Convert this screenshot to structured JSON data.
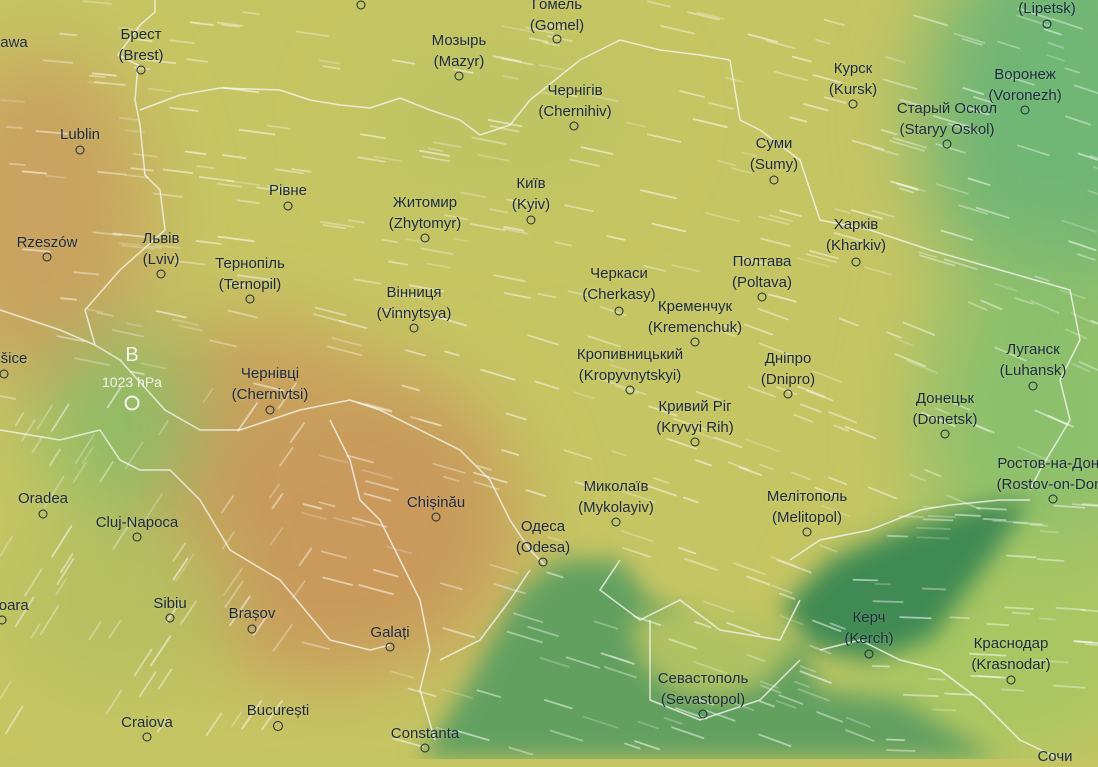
{
  "map": {
    "layer": "wind",
    "colors": {
      "land_warm": "#c99a5c",
      "land_mid": "#c4c463",
      "land_cool": "#7dbb6a",
      "sea": "#5e9e5c",
      "azov": "#3f8a52",
      "labels": "#1d2a3c",
      "borders": "#f2f2e8"
    },
    "pressure_center": {
      "letter": "B",
      "value": "1023 hPa"
    },
    "cities": [
      {
        "name": "awa",
        "alt": ""
      },
      {
        "name": "Брест",
        "alt": "(Brest)"
      },
      {
        "name": "Мозырь",
        "alt": "(Mazyr)"
      },
      {
        "name": "Гомель",
        "alt": "(Gomel)"
      },
      {
        "name": "",
        "alt": "(Lipetsk)"
      },
      {
        "name": "Чернігів",
        "alt": "(Chernihiv)"
      },
      {
        "name": "Курск",
        "alt": "(Kursk)"
      },
      {
        "name": "Воронеж",
        "alt": "(Voronezh)"
      },
      {
        "name": "Старый Оскол",
        "alt": "(Staryy Oskol)"
      },
      {
        "name": "Lublin",
        "alt": ""
      },
      {
        "name": "Суми",
        "alt": "(Sumy)"
      },
      {
        "name": "Рівне",
        "alt": ""
      },
      {
        "name": "Київ",
        "alt": "(Kyiv)"
      },
      {
        "name": "Житомир",
        "alt": "(Zhytomyr)"
      },
      {
        "name": "Rzeszów",
        "alt": ""
      },
      {
        "name": "Львів",
        "alt": "(Lviv)"
      },
      {
        "name": "Харків",
        "alt": "(Kharkiv)"
      },
      {
        "name": "Тернопіль",
        "alt": "(Ternopil)"
      },
      {
        "name": "Полтава",
        "alt": "(Poltava)"
      },
      {
        "name": "Черкаси",
        "alt": "(Cherkasy)"
      },
      {
        "name": "Вінниця",
        "alt": "(Vinnytsya)"
      },
      {
        "name": "Кременчук",
        "alt": "(Kremenchuk)"
      },
      {
        "name": "Кропивницький",
        "alt": "(Kropyvnytskyi)"
      },
      {
        "name": "Дніпро",
        "alt": "(Dnipro)"
      },
      {
        "name": "Луганск",
        "alt": "(Luhansk)"
      },
      {
        "name": "šice",
        "alt": ""
      },
      {
        "name": "Чернівці",
        "alt": "(Chernivtsi)"
      },
      {
        "name": "Донецьк",
        "alt": "(Donetsk)"
      },
      {
        "name": "Кривий Ріг",
        "alt": "(Kryvyi Rih)"
      },
      {
        "name": "Oradea",
        "alt": ""
      },
      {
        "name": "Chișinău",
        "alt": ""
      },
      {
        "name": "Cluj-Napoca",
        "alt": ""
      },
      {
        "name": "Миколаїв",
        "alt": "(Mykolayiv)"
      },
      {
        "name": "Мелітополь",
        "alt": "(Melitopol)"
      },
      {
        "name": "Ростов-на-Дону",
        "alt": "(Rostov-on-Don)"
      },
      {
        "name": "Одеса",
        "alt": "(Odesa)"
      },
      {
        "name": "șoara",
        "alt": ""
      },
      {
        "name": "Sibiu",
        "alt": ""
      },
      {
        "name": "Brașov",
        "alt": ""
      },
      {
        "name": "Керч",
        "alt": "(Kerch)"
      },
      {
        "name": "Galați",
        "alt": ""
      },
      {
        "name": "Краснодар",
        "alt": "(Krasnodar)"
      },
      {
        "name": "Севастополь",
        "alt": "(Sevastopol)"
      },
      {
        "name": "Craiova",
        "alt": ""
      },
      {
        "name": "București",
        "alt": ""
      },
      {
        "name": "Constanta",
        "alt": ""
      },
      {
        "name": "Сочи",
        "alt": ""
      }
    ]
  }
}
